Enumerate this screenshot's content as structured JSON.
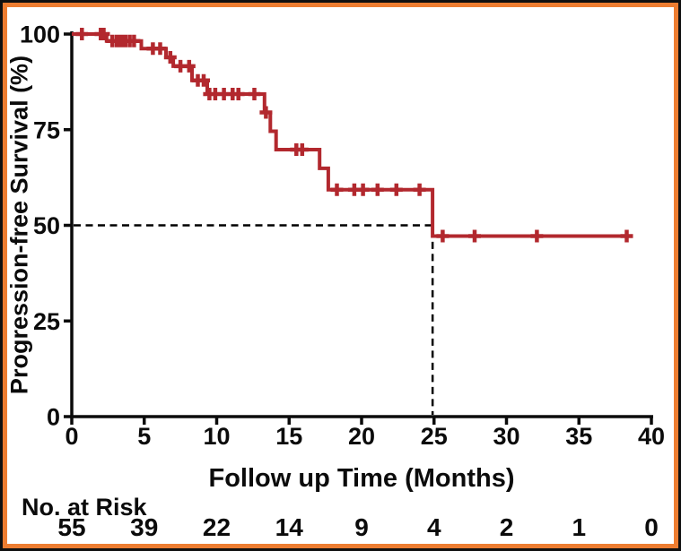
{
  "figure": {
    "background": "#FFFFFF",
    "outer_border_color": "#101010",
    "inner_border_color": "#ED7D31",
    "text_color": "#0B0B0B"
  },
  "chart_data": {
    "type": "line",
    "subtype": "kaplan_meier_step",
    "title": "",
    "xlabel": "Follow up Time (Months)",
    "ylabel": "Progression-free Survival (%)",
    "xlim": [
      0,
      40
    ],
    "ylim": [
      0,
      100
    ],
    "x_ticks": [
      0,
      5,
      10,
      15,
      20,
      25,
      30,
      35,
      40
    ],
    "y_ticks": [
      0,
      25,
      50,
      75,
      100
    ],
    "grid": false,
    "legend": "none",
    "axis_color": "#0B0B0B",
    "series": [
      {
        "name": "Progression-free survival",
        "color": "#B2282E",
        "step_points": [
          [
            0,
            100
          ],
          [
            2.4,
            100
          ],
          [
            2.4,
            98.2
          ],
          [
            4.8,
            98.2
          ],
          [
            4.8,
            96.2
          ],
          [
            6.5,
            96.2
          ],
          [
            6.5,
            93.9
          ],
          [
            7.0,
            93.9
          ],
          [
            7.0,
            91.6
          ],
          [
            8.3,
            91.6
          ],
          [
            8.3,
            87.9
          ],
          [
            9.35,
            87.9
          ],
          [
            9.35,
            84.3
          ],
          [
            13.3,
            84.3
          ],
          [
            13.3,
            79.5
          ],
          [
            13.7,
            79.5
          ],
          [
            13.7,
            74.6
          ],
          [
            14.1,
            74.6
          ],
          [
            14.1,
            69.8
          ],
          [
            17.1,
            69.8
          ],
          [
            17.1,
            64.9
          ],
          [
            17.7,
            64.9
          ],
          [
            17.7,
            59.3
          ],
          [
            24.9,
            59.3
          ],
          [
            24.9,
            47.2
          ],
          [
            38.6,
            47.2
          ]
        ],
        "censor_marks": [
          [
            0.7,
            100
          ],
          [
            2.0,
            100
          ],
          [
            2.2,
            100
          ],
          [
            2.8,
            98.2
          ],
          [
            3.1,
            98.2
          ],
          [
            3.3,
            98.2
          ],
          [
            3.5,
            98.2
          ],
          [
            3.7,
            98.2
          ],
          [
            4.0,
            98.2
          ],
          [
            4.3,
            98.2
          ],
          [
            5.6,
            96.2
          ],
          [
            6.1,
            96.2
          ],
          [
            6.8,
            93.9
          ],
          [
            7.5,
            91.6
          ],
          [
            8.1,
            91.6
          ],
          [
            8.7,
            87.9
          ],
          [
            9.1,
            87.9
          ],
          [
            9.5,
            84.3
          ],
          [
            9.9,
            84.3
          ],
          [
            10.5,
            84.3
          ],
          [
            11.1,
            84.3
          ],
          [
            11.5,
            84.3
          ],
          [
            12.6,
            84.3
          ],
          [
            13.4,
            79.5
          ],
          [
            15.5,
            69.8
          ],
          [
            15.9,
            69.8
          ],
          [
            18.3,
            59.3
          ],
          [
            19.5,
            59.3
          ],
          [
            20.1,
            59.3
          ],
          [
            21.1,
            59.3
          ],
          [
            22.4,
            59.3
          ],
          [
            24.0,
            59.3
          ],
          [
            25.6,
            47.2
          ],
          [
            27.8,
            47.2
          ],
          [
            32.1,
            47.2
          ],
          [
            38.3,
            47.2
          ]
        ]
      }
    ],
    "median_reference": {
      "survival_pct": 50,
      "time_months": 24.9,
      "line_style": "dashed",
      "color": "#000000"
    },
    "at_risk": {
      "title": "No. at Risk",
      "times": [
        0,
        5,
        10,
        15,
        20,
        25,
        30,
        35,
        40
      ],
      "counts": [
        55,
        39,
        22,
        14,
        9,
        4,
        2,
        1,
        0
      ]
    }
  }
}
